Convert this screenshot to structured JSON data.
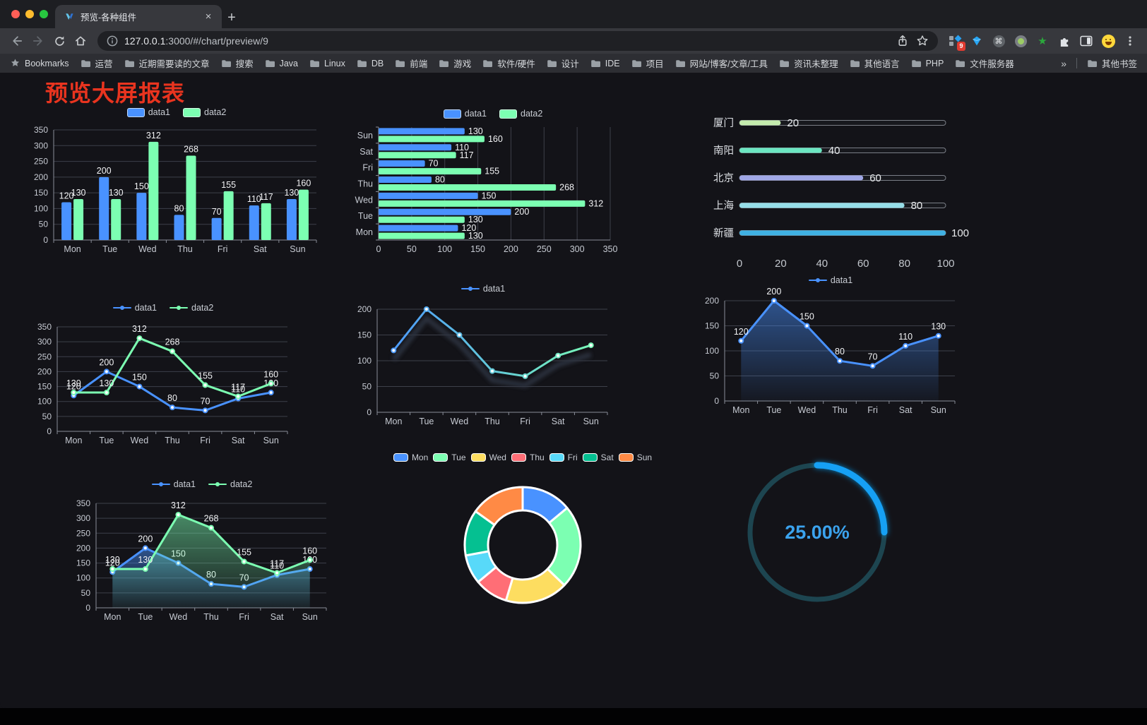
{
  "browser": {
    "window_controls": [
      "close",
      "minimize",
      "zoom"
    ],
    "tab": {
      "title": "预览-各种组件"
    },
    "icons": {
      "close_glyph": "×",
      "new_tab_glyph": "+",
      "command_glyph": "⌘",
      "overflow_glyph": "»",
      "star_glyph": "★"
    },
    "address": {
      "url_host": "127.0.0.1",
      "url_rest": ":3000/#/chart/preview/9"
    },
    "extensions_badge": "9",
    "bookmarks_label": "Bookmarks",
    "bookmarks": [
      "运营",
      "近期需要读的文章",
      "搜索",
      "Java",
      "Linux",
      "DB",
      "前端",
      "游戏",
      "软件/硬件",
      "设计",
      "IDE",
      "项目",
      "网站/博客/文章/工具",
      "资讯未整理",
      "其他语言",
      "PHP",
      "文件服务器"
    ],
    "other_bookmarks": "其他书签"
  },
  "page": {
    "title": "预览大屏报表",
    "title_color": "#e9341f",
    "background": "#131318"
  },
  "chart_data": [
    {
      "id": "bar-grouped",
      "type": "bar",
      "categories": [
        "Mon",
        "Tue",
        "Wed",
        "Thu",
        "Fri",
        "Sat",
        "Sun"
      ],
      "series": [
        {
          "name": "data1",
          "color": "#4992ff",
          "values": [
            120,
            200,
            150,
            80,
            70,
            110,
            130
          ]
        },
        {
          "name": "data2",
          "color": "#7cffb2",
          "values": [
            130,
            130,
            312,
            268,
            155,
            117,
            160
          ]
        }
      ],
      "ylim": [
        0,
        350
      ],
      "yticks": [
        0,
        50,
        100,
        150,
        200,
        250,
        300,
        350
      ],
      "labels": true,
      "legend": true,
      "grid": true,
      "legend_position": "top"
    },
    {
      "id": "bar-horizontal",
      "type": "bar-horizontal",
      "categories": [
        "Sun",
        "Sat",
        "Fri",
        "Thu",
        "Wed",
        "Tue",
        "Mon"
      ],
      "series": [
        {
          "name": "data1",
          "color": "#4992ff",
          "values": [
            130,
            110,
            70,
            80,
            150,
            200,
            120
          ]
        },
        {
          "name": "data2",
          "color": "#7cffb2",
          "values": [
            160,
            117,
            155,
            268,
            312,
            130,
            130
          ]
        }
      ],
      "xlim": [
        0,
        350
      ],
      "xticks": [
        0,
        50,
        100,
        150,
        200,
        250,
        300,
        350
      ],
      "labels": true,
      "legend": true,
      "grid": true,
      "legend_position": "top"
    },
    {
      "id": "progress",
      "type": "progress-bars",
      "rows": [
        {
          "label": "厦门",
          "value": 20,
          "color": "#c4ebad"
        },
        {
          "label": "南阳",
          "value": 40,
          "color": "#6be6c1"
        },
        {
          "label": "北京",
          "value": 60,
          "color": "#a0a7e6"
        },
        {
          "label": "上海",
          "value": 80,
          "color": "#96dee8"
        },
        {
          "label": "新疆",
          "value": 100,
          "color": "#3fb1e3"
        }
      ],
      "xlim": [
        0,
        100
      ],
      "xticks": [
        0,
        20,
        40,
        60,
        80,
        100
      ]
    },
    {
      "id": "line-two",
      "type": "line",
      "categories": [
        "Mon",
        "Tue",
        "Wed",
        "Thu",
        "Fri",
        "Sat",
        "Sun"
      ],
      "series": [
        {
          "name": "data1",
          "color": "#4992ff",
          "values": [
            120,
            200,
            150,
            80,
            70,
            110,
            130
          ]
        },
        {
          "name": "data2",
          "color": "#7cffb2",
          "values": [
            130,
            130,
            312,
            268,
            155,
            117,
            160
          ]
        }
      ],
      "ylim": [
        0,
        350
      ],
      "yticks": [
        0,
        50,
        100,
        150,
        200,
        250,
        300,
        350
      ],
      "labels": true,
      "legend": true,
      "grid": true,
      "legend_position": "top"
    },
    {
      "id": "line-gradient",
      "type": "line",
      "categories": [
        "Mon",
        "Tue",
        "Wed",
        "Thu",
        "Fri",
        "Sat",
        "Sun"
      ],
      "series": [
        {
          "name": "data1",
          "color": "#4992ff",
          "color2": "#7cffb2",
          "gradient": true,
          "shadow": true,
          "values": [
            120,
            200,
            150,
            80,
            70,
            110,
            130
          ]
        }
      ],
      "ylim": [
        0,
        200
      ],
      "yticks": [
        0,
        50,
        100,
        150,
        200
      ],
      "labels": false,
      "legend": true,
      "grid": true,
      "legend_position": "top"
    },
    {
      "id": "line-area",
      "type": "line",
      "categories": [
        "Mon",
        "Tue",
        "Wed",
        "Thu",
        "Fri",
        "Sat",
        "Sun"
      ],
      "series": [
        {
          "name": "data1",
          "color": "#4992ff",
          "area": true,
          "values": [
            120,
            200,
            150,
            80,
            70,
            110,
            130
          ]
        }
      ],
      "ylim": [
        0,
        200
      ],
      "yticks": [
        0,
        50,
        100,
        150,
        200
      ],
      "labels": true,
      "legend": true,
      "grid": true,
      "legend_position": "top"
    },
    {
      "id": "line-area-two",
      "type": "line",
      "categories": [
        "Mon",
        "Tue",
        "Wed",
        "Thu",
        "Fri",
        "Sat",
        "Sun"
      ],
      "series": [
        {
          "name": "data1",
          "color": "#4992ff",
          "area": true,
          "values": [
            120,
            200,
            150,
            80,
            70,
            110,
            130
          ]
        },
        {
          "name": "data2",
          "color": "#7cffb2",
          "area": true,
          "values": [
            130,
            130,
            312,
            268,
            155,
            117,
            160
          ]
        }
      ],
      "ylim": [
        0,
        350
      ],
      "yticks": [
        0,
        50,
        100,
        150,
        200,
        250,
        300,
        350
      ],
      "labels": true,
      "legend": true,
      "grid": true,
      "legend_position": "top"
    },
    {
      "id": "donut",
      "type": "pie",
      "inner_radius": 49,
      "outer_radius": 82,
      "items": [
        {
          "label": "Mon",
          "value": 120,
          "color": "#4992ff"
        },
        {
          "label": "Tue",
          "value": 200,
          "color": "#7cffb2"
        },
        {
          "label": "Wed",
          "value": 150,
          "color": "#fddd60"
        },
        {
          "label": "Thu",
          "value": 80,
          "color": "#ff6e76"
        },
        {
          "label": "Fri",
          "value": 70,
          "color": "#58d9f9"
        },
        {
          "label": "Sat",
          "value": 110,
          "color": "#05c091"
        },
        {
          "label": "Sun",
          "value": 130,
          "color": "#ff8a45"
        }
      ],
      "legend": true,
      "legend_position": "top"
    },
    {
      "id": "gauge",
      "type": "gauge",
      "percent": 25,
      "label": "25.00%",
      "color": "#14a0f4",
      "track_color": "#1d4550",
      "text_color": "#3ba3ee"
    }
  ]
}
